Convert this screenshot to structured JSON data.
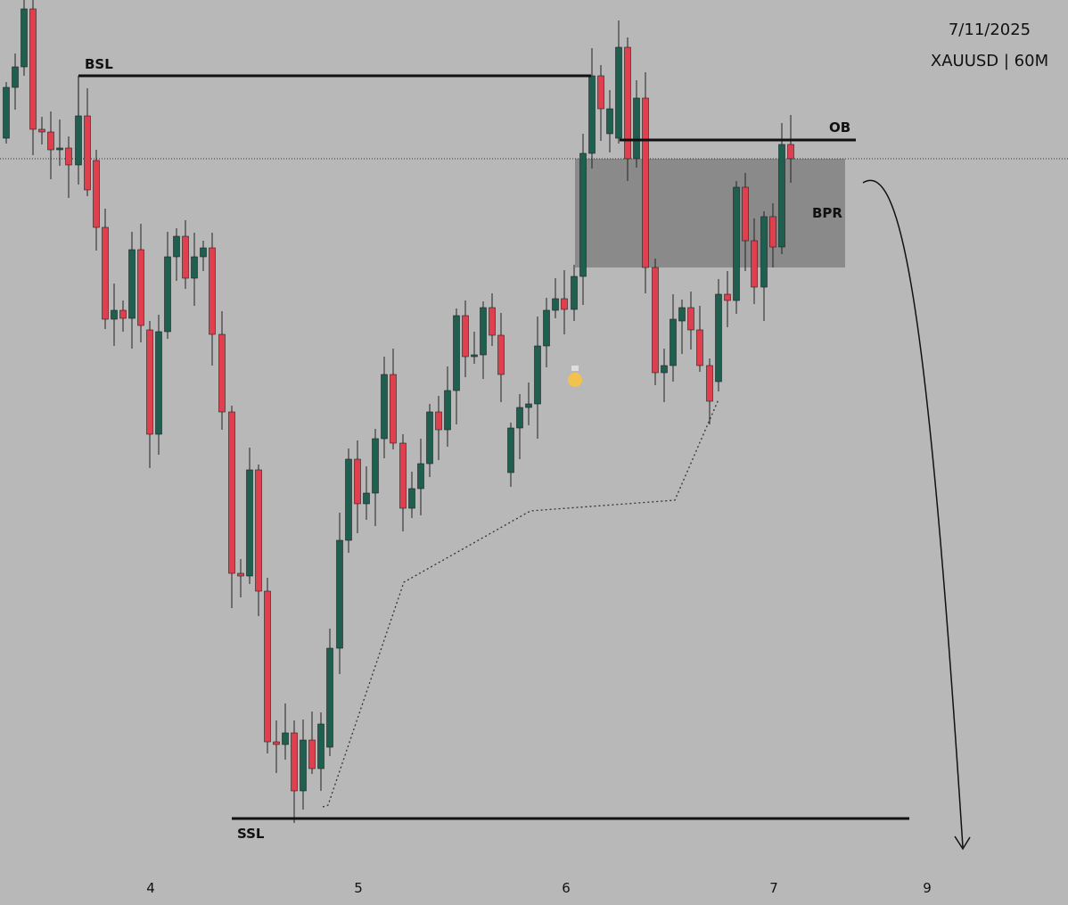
{
  "header": {
    "date": "7/11/2025",
    "symbol": "XAUUSD | 60M"
  },
  "labels": {
    "bsl": "BSL",
    "ob": "OB",
    "bpr": "BPR",
    "ssl": "SSL"
  },
  "x_axis": [
    "4",
    "5",
    "6",
    "7",
    "9"
  ]
}
